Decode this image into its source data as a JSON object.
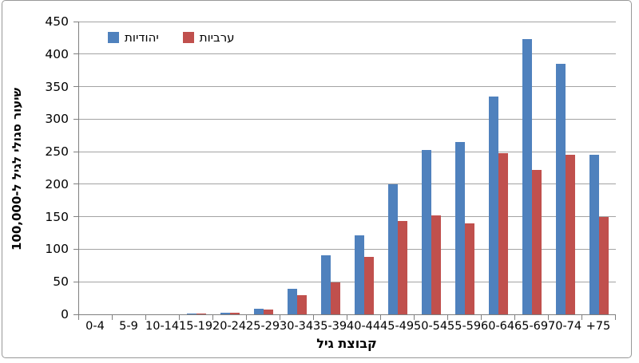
{
  "colors": {
    "series_blue": "#4F81BD",
    "series_red": "#C0504D",
    "gridline": "#A3A3A3",
    "axis": "#7F7F7F",
    "frame_border": "#989898"
  },
  "chart_data": {
    "type": "bar",
    "title": "",
    "categories": [
      "0-4",
      "5-9",
      "10-14",
      "15-19",
      "20-24",
      "25-29",
      "30-34",
      "35-39",
      "40-44",
      "45-49",
      "50-54",
      "55-59",
      "60-64",
      "65-69",
      "70-74",
      "+75"
    ],
    "series": [
      {
        "name": "יהודיות",
        "color": "#4F81BD",
        "values": [
          0,
          0,
          0,
          1,
          2,
          9,
          39,
          91,
          122,
          200,
          253,
          265,
          335,
          423,
          385,
          245
        ]
      },
      {
        "name": "ערביות",
        "color": "#C0504D",
        "values": [
          0,
          0,
          0,
          1,
          3,
          7,
          30,
          49,
          88,
          143,
          152,
          140,
          248,
          222,
          245,
          150
        ]
      }
    ],
    "xlabel": "קבוצת גיל",
    "ylabel": "שיעור סגולי לגיל ל-100,000",
    "ylim": [
      0,
      450
    ],
    "yticks": [
      0,
      50,
      100,
      150,
      200,
      250,
      300,
      350,
      400,
      450
    ],
    "grid": true,
    "legend_position": "top-left-inside"
  }
}
